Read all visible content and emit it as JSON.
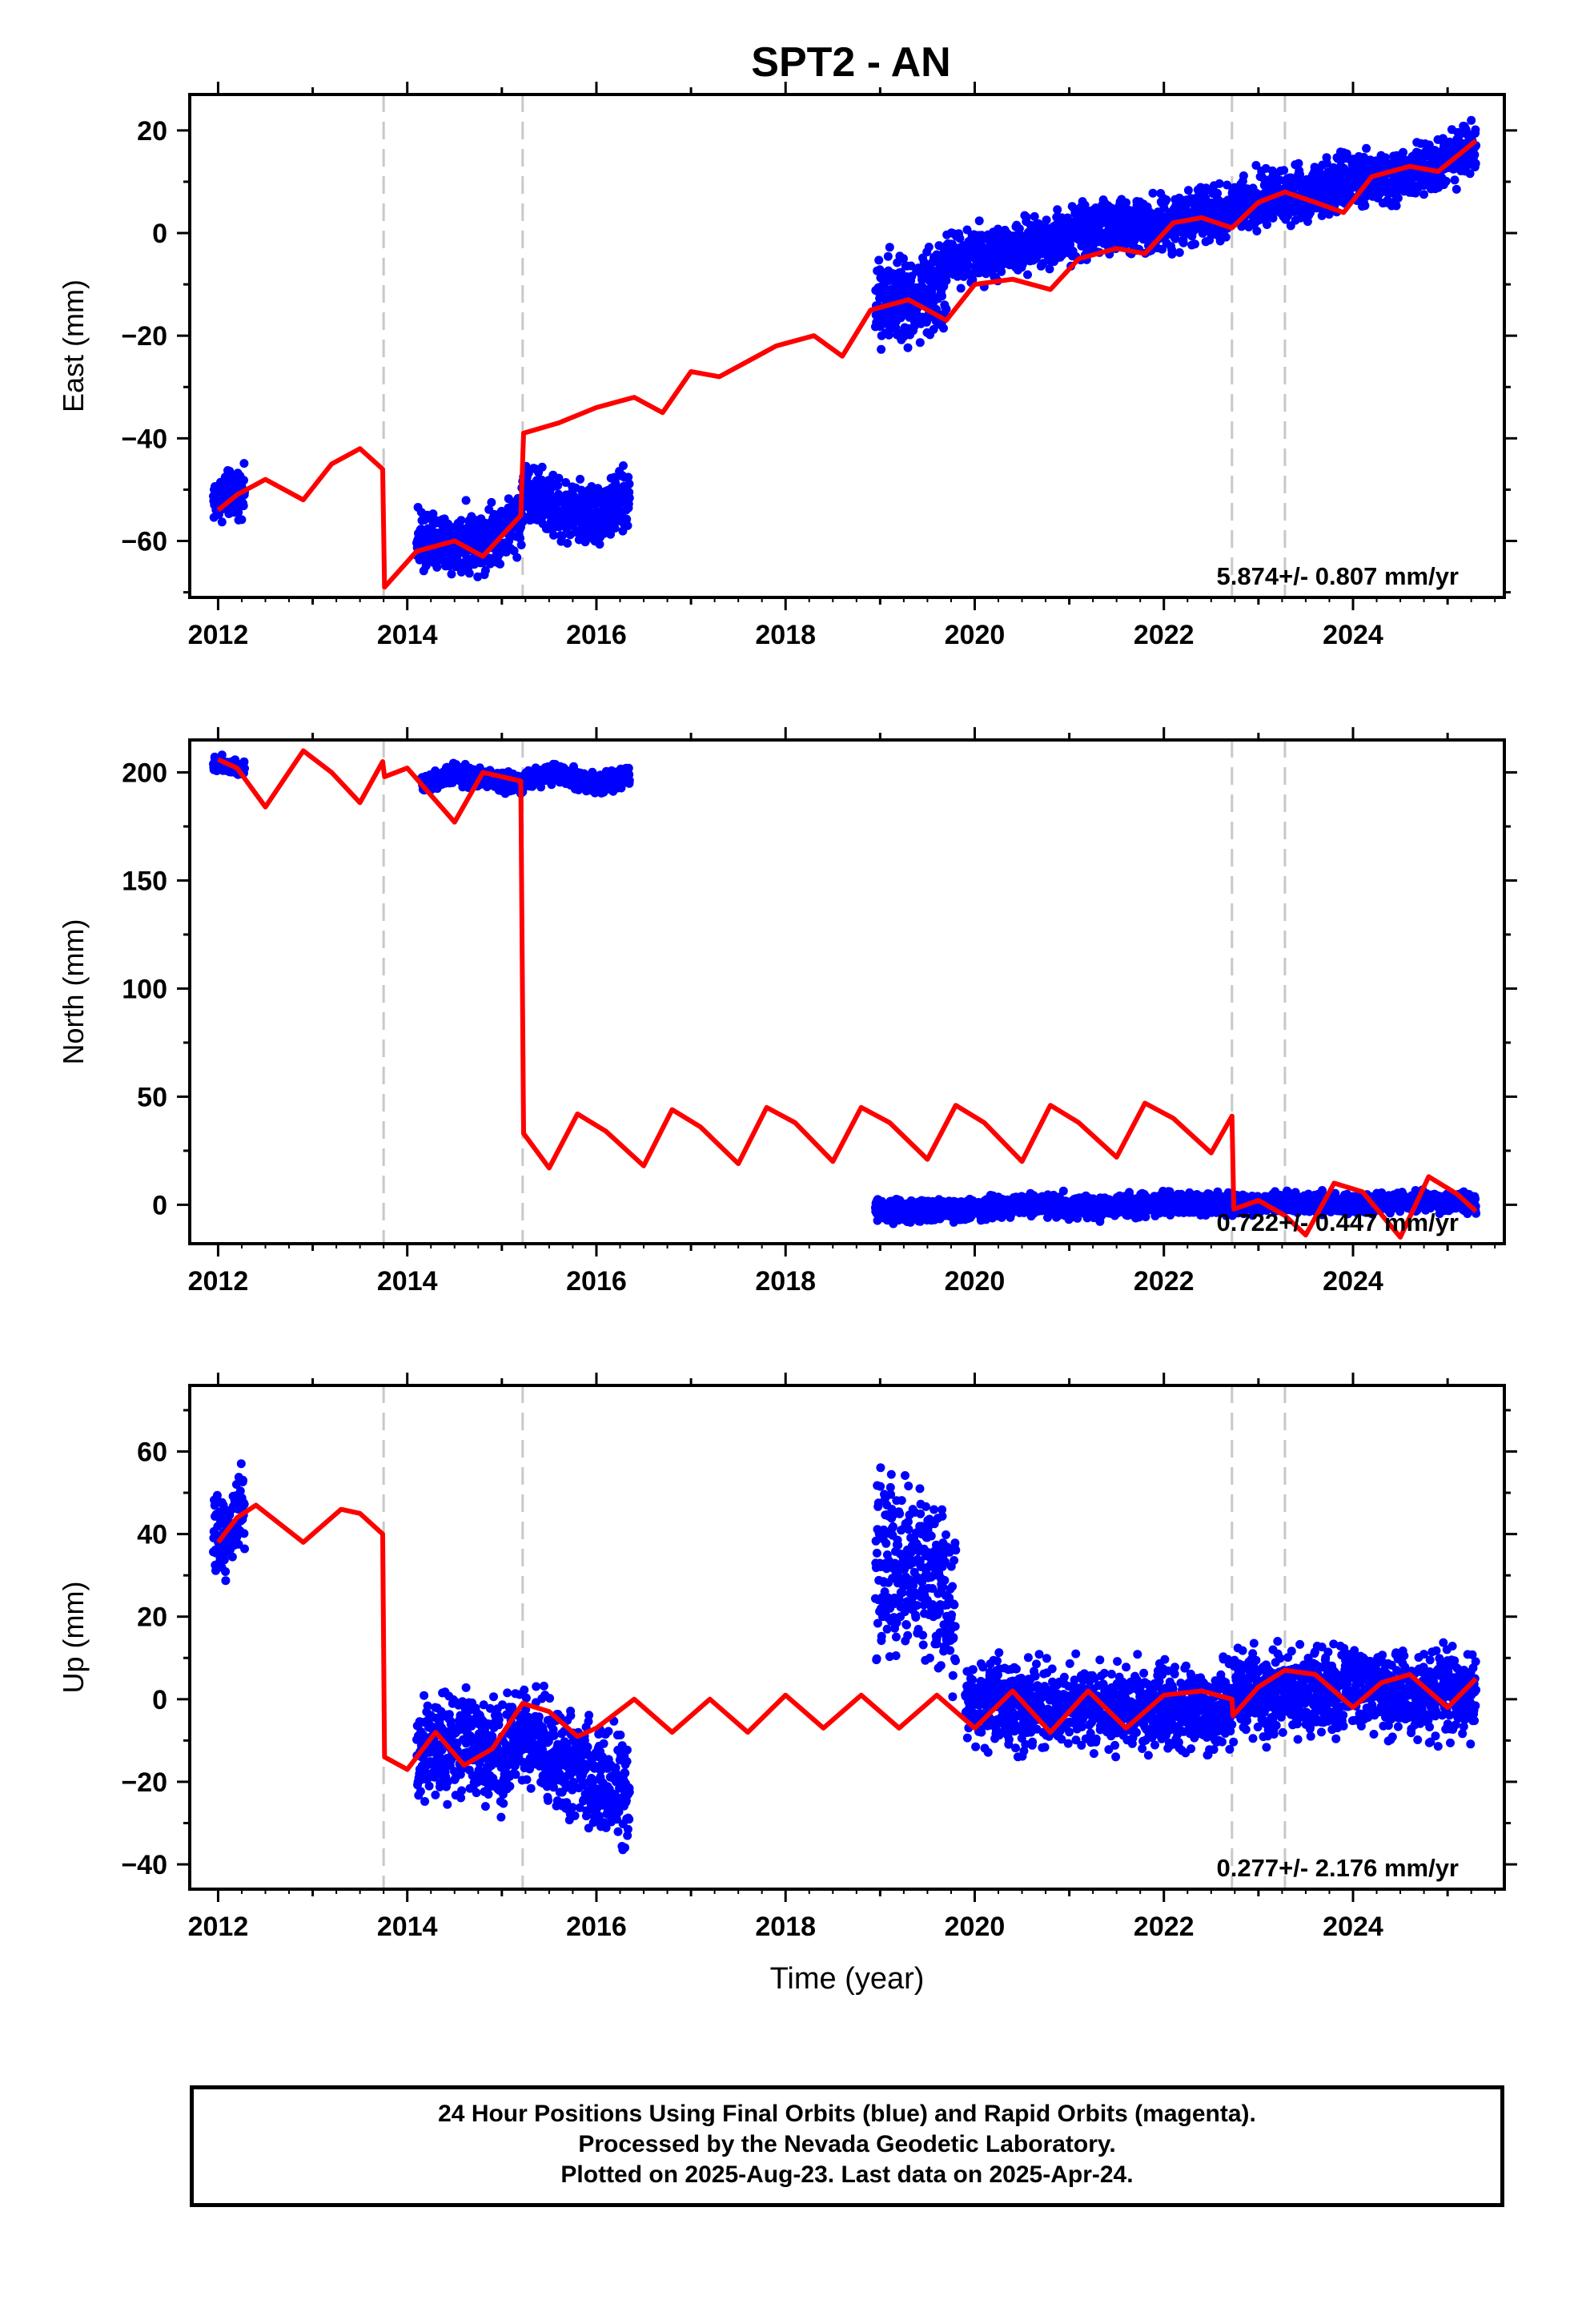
{
  "chart_data": [
    {
      "type": "scatter",
      "title": "SPT2 - AN",
      "ylabel": "East (mm)",
      "xlabel": "",
      "xlim": [
        2011.7,
        2025.6
      ],
      "ylim": [
        -71,
        27
      ],
      "x_ticks": [
        2012,
        2014,
        2016,
        2018,
        2020,
        2022,
        2024
      ],
      "y_ticks": [
        -60,
        -40,
        -20,
        0,
        20
      ],
      "rate_text": "5.874+/- 0.807 mm/yr",
      "grid": false,
      "steps": [
        2013.75,
        2015.22,
        2022.72,
        2023.28
      ],
      "series": [
        {
          "kind": "points",
          "color": "#0000ff",
          "segments": [
            {
              "x": [
                2011.95,
                2012.1,
                2012.28
              ],
              "y": [
                -52,
                -51,
                -50
              ],
              "spread": 3
            },
            {
              "x": [
                2014.1,
                2014.5,
                2015.0,
                2015.22
              ],
              "y": [
                -60,
                -61,
                -58,
                -55
              ],
              "spread": 4
            },
            {
              "x": [
                2015.22,
                2015.6,
                2016.0,
                2016.35
              ],
              "y": [
                -50,
                -54,
                -55,
                -52
              ],
              "spread": 4
            },
            {
              "x": [
                2018.95,
                2019.3,
                2019.7
              ],
              "y": [
                -12,
                -14,
                -10
              ],
              "spread": 6
            },
            {
              "x": [
                2019.7,
                2020.5,
                2021.2,
                2022.0,
                2022.72
              ],
              "y": [
                -5,
                -3,
                1,
                2,
                4
              ],
              "spread": 3.5
            },
            {
              "x": [
                2022.72,
                2023.3,
                2024.0,
                2024.6,
                2025.3
              ],
              "y": [
                6,
                7,
                10,
                11,
                17
              ],
              "spread": 3.5
            }
          ]
        },
        {
          "kind": "line",
          "color": "#ff0000",
          "x": [
            2012.0,
            2012.2,
            2012.5,
            2012.9,
            2013.2,
            2013.5,
            2013.74,
            2013.76,
            2014.1,
            2014.5,
            2014.8,
            2015.2,
            2015.23,
            2015.6,
            2016.0,
            2016.4,
            2016.7,
            2017.0,
            2017.3,
            2017.6,
            2017.9,
            2018.3,
            2018.6,
            2018.9,
            2019.3,
            2019.7,
            2020.0,
            2020.4,
            2020.8,
            2021.1,
            2021.5,
            2021.8,
            2022.1,
            2022.4,
            2022.72,
            2023.0,
            2023.28,
            2023.6,
            2023.9,
            2024.2,
            2024.6,
            2024.9,
            2025.3
          ],
          "y": [
            -54,
            -51,
            -48,
            -52,
            -45,
            -42,
            -46,
            -69,
            -62,
            -60,
            -63,
            -55,
            -39,
            -37,
            -34,
            -32,
            -35,
            -27,
            -28,
            -25,
            -22,
            -20,
            -24,
            -15,
            -13,
            -17,
            -10,
            -9,
            -11,
            -5,
            -3,
            -4,
            2,
            3,
            1,
            6,
            8,
            6,
            4,
            11,
            13,
            12,
            18
          ]
        }
      ]
    },
    {
      "type": "scatter",
      "title": "",
      "ylabel": "North (mm)",
      "xlabel": "",
      "xlim": [
        2011.7,
        2025.6
      ],
      "ylim": [
        -18,
        215
      ],
      "x_ticks": [
        2012,
        2014,
        2016,
        2018,
        2020,
        2022,
        2024
      ],
      "y_ticks": [
        0,
        50,
        100,
        150,
        200
      ],
      "rate_text": "0.722+/- 0.447 mm/yr",
      "grid": false,
      "steps": [
        2013.75,
        2015.22,
        2022.72,
        2023.28
      ],
      "series": [
        {
          "kind": "points",
          "color": "#0000ff",
          "segments": [
            {
              "x": [
                2011.95,
                2012.15,
                2012.28
              ],
              "y": [
                204,
                203,
                202
              ],
              "spread": 2.5
            },
            {
              "x": [
                2014.15,
                2014.5,
                2015.0,
                2015.22
              ],
              "y": [
                195,
                199,
                196,
                194
              ],
              "spread": 3
            },
            {
              "x": [
                2015.22,
                2015.6,
                2016.0,
                2016.35
              ],
              "y": [
                197,
                200,
                194,
                198
              ],
              "spread": 3
            },
            {
              "x": [
                2018.95,
                2019.5,
                2020.0,
                2020.6,
                2021.2,
                2021.8,
                2022.72
              ],
              "y": [
                -2,
                -3,
                -2,
                0,
                -1,
                0,
                1
              ],
              "spread": 3.5
            },
            {
              "x": [
                2022.72,
                2023.3,
                2024.0,
                2024.7,
                2025.3
              ],
              "y": [
                0,
                1,
                0,
                2,
                1
              ],
              "spread": 3
            }
          ]
        },
        {
          "kind": "line",
          "color": "#ff0000",
          "x": [
            2012.0,
            2012.2,
            2012.5,
            2012.9,
            2013.2,
            2013.5,
            2013.74,
            2013.76,
            2014.0,
            2014.2,
            2014.5,
            2014.8,
            2015.2,
            2015.23,
            2015.5,
            2015.8,
            2016.1,
            2016.5,
            2016.8,
            2017.1,
            2017.5,
            2017.8,
            2018.1,
            2018.5,
            2018.8,
            2019.1,
            2019.5,
            2019.8,
            2020.1,
            2020.5,
            2020.8,
            2021.1,
            2021.5,
            2021.8,
            2022.1,
            2022.5,
            2022.72,
            2022.74,
            2023.0,
            2023.28,
            2023.5,
            2023.8,
            2024.1,
            2024.5,
            2024.8,
            2025.1,
            2025.3
          ],
          "y": [
            206,
            202,
            184,
            210,
            200,
            186,
            205,
            198,
            202,
            192,
            177,
            200,
            196,
            33,
            17,
            42,
            34,
            18,
            44,
            36,
            19,
            45,
            38,
            20,
            45,
            38,
            21,
            46,
            38,
            20,
            46,
            38,
            22,
            47,
            40,
            24,
            41,
            -2,
            2,
            -5,
            -14,
            10,
            6,
            -15,
            13,
            5,
            -3
          ]
        }
      ]
    },
    {
      "type": "scatter",
      "title": "",
      "ylabel": "Up (mm)",
      "xlabel": "Time (year)",
      "xlim": [
        2011.7,
        2025.6
      ],
      "ylim": [
        -46,
        76
      ],
      "x_ticks": [
        2012,
        2014,
        2016,
        2018,
        2020,
        2022,
        2024
      ],
      "y_ticks": [
        -40,
        -20,
        0,
        20,
        40,
        60
      ],
      "rate_text": "0.277+/- 2.176 mm/yr",
      "grid": false,
      "steps": [
        2013.75,
        2015.22,
        2022.72,
        2023.28
      ],
      "series": [
        {
          "kind": "points",
          "color": "#0000ff",
          "segments": [
            {
              "x": [
                2011.95,
                2012.12,
                2012.28
              ],
              "y": [
                38,
                42,
                46
              ],
              "spread": 7
            },
            {
              "x": [
                2014.1,
                2014.6,
                2015.0,
                2015.22
              ],
              "y": [
                -12,
                -11,
                -14,
                -8
              ],
              "spread": 8
            },
            {
              "x": [
                2015.22,
                2015.6,
                2016.0,
                2016.35
              ],
              "y": [
                -8,
                -14,
                -20,
                -22
              ],
              "spread": 9
            },
            {
              "x": [
                2018.95,
                2019.4,
                2019.8
              ],
              "y": [
                33,
                32,
                22
              ],
              "spread": 14
            },
            {
              "x": [
                2019.9,
                2020.5,
                2021.2,
                2021.9,
                2022.72
              ],
              "y": [
                0,
                -2,
                -1,
                -3,
                -2
              ],
              "spread": 7
            },
            {
              "x": [
                2022.72,
                2023.3,
                2024.0,
                2024.7,
                2025.3
              ],
              "y": [
                1,
                2,
                3,
                1,
                2
              ],
              "spread": 7
            }
          ]
        },
        {
          "kind": "line",
          "color": "#ff0000",
          "x": [
            2012.0,
            2012.2,
            2012.4,
            2012.9,
            2013.3,
            2013.5,
            2013.74,
            2013.76,
            2014.0,
            2014.3,
            2014.6,
            2014.9,
            2015.22,
            2015.5,
            2015.8,
            2016.0,
            2016.4,
            2016.8,
            2017.2,
            2017.6,
            2018.0,
            2018.4,
            2018.8,
            2019.2,
            2019.6,
            2020.0,
            2020.4,
            2020.8,
            2021.2,
            2021.6,
            2022.0,
            2022.4,
            2022.72,
            2022.73,
            2023.0,
            2023.28,
            2023.6,
            2024.0,
            2024.3,
            2024.6,
            2025.0,
            2025.3
          ],
          "y": [
            38,
            44,
            47,
            38,
            46,
            45,
            40,
            -14,
            -17,
            -8,
            -16,
            -12,
            -1,
            -3,
            -9,
            -7,
            0,
            -8,
            0,
            -8,
            1,
            -7,
            1,
            -7,
            1,
            -7,
            2,
            -8,
            2,
            -7,
            1,
            2,
            0,
            -4,
            3,
            7,
            6,
            -2,
            4,
            6,
            -2,
            5
          ]
        }
      ]
    }
  ],
  "footer": {
    "line1": "24 Hour Positions Using Final Orbits (blue) and Rapid Orbits (magenta).",
    "line2": "Processed by the Nevada Geodetic Laboratory.",
    "line3": "Plotted on 2025-Aug-23. Last data on 2025-Apr-24."
  }
}
